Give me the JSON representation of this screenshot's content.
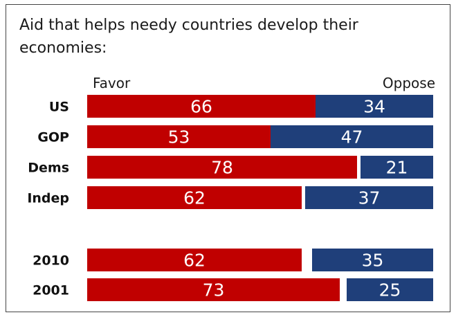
{
  "colors": {
    "favor": "#c00000",
    "oppose": "#1f3f7a",
    "label": "#111111",
    "text": "#1a1a1a"
  },
  "chart_data": {
    "type": "bar",
    "stacked": true,
    "orientation": "horizontal",
    "title": "Aid that helps needy countries develop their economies:",
    "series_names": [
      "Favor",
      "Oppose"
    ],
    "categories": [
      "US",
      "GOP",
      "Dems",
      "Indep",
      "2010",
      "2001"
    ],
    "series": [
      {
        "name": "Favor",
        "values": [
          66,
          53,
          78,
          62,
          62,
          73
        ]
      },
      {
        "name": "Oppose",
        "values": [
          34,
          47,
          21,
          37,
          35,
          25
        ]
      }
    ],
    "xlim": [
      0,
      100
    ],
    "grid": false,
    "legend": "top, as column headers"
  }
}
